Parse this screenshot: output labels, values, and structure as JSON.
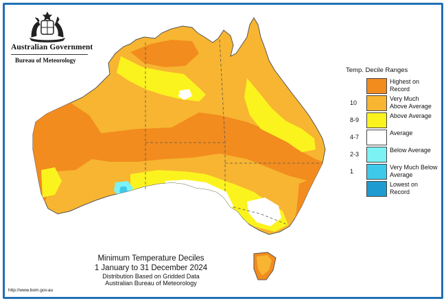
{
  "header": {
    "government": "Australian Government",
    "bureau": "Bureau of Meteorology"
  },
  "legend": {
    "title": "Temp. Decile Ranges",
    "items": [
      {
        "range": "",
        "label": "Highest on Record",
        "color": "#f28c1e"
      },
      {
        "range": "10",
        "label": "Very Much Above Average",
        "color": "#f7b531"
      },
      {
        "range": "8-9",
        "label": "Above Average",
        "color": "#fbf31e"
      },
      {
        "range": "4-7",
        "label": "Average",
        "color": "#ffffff"
      },
      {
        "range": "2-3",
        "label": "Below Average",
        "color": "#7cf2f4"
      },
      {
        "range": "1",
        "label": "Very Much Below Average",
        "color": "#3ec9ea"
      },
      {
        "range": "",
        "label": "Lowest on Record",
        "color": "#1e9bd0"
      }
    ]
  },
  "caption": {
    "line1": "Minimum Temperature Deciles",
    "line2": "1 January to 31 December 2024",
    "line3": "Distribution Based on Gridded Data",
    "line4": "Australian Bureau of Meteorology"
  },
  "footer": {
    "url": "http://www.bom.gov.au"
  },
  "map_colors": {
    "highest": "#f28c1e",
    "very_much_above": "#f7b531",
    "above": "#fbf31e",
    "average": "#ffffff",
    "below": "#7cf2f4",
    "very_much_below": "#3ec9ea",
    "water": "#ffffff",
    "outline": "#555555"
  },
  "icons": {
    "crest": "coat-of-arms-icon"
  }
}
